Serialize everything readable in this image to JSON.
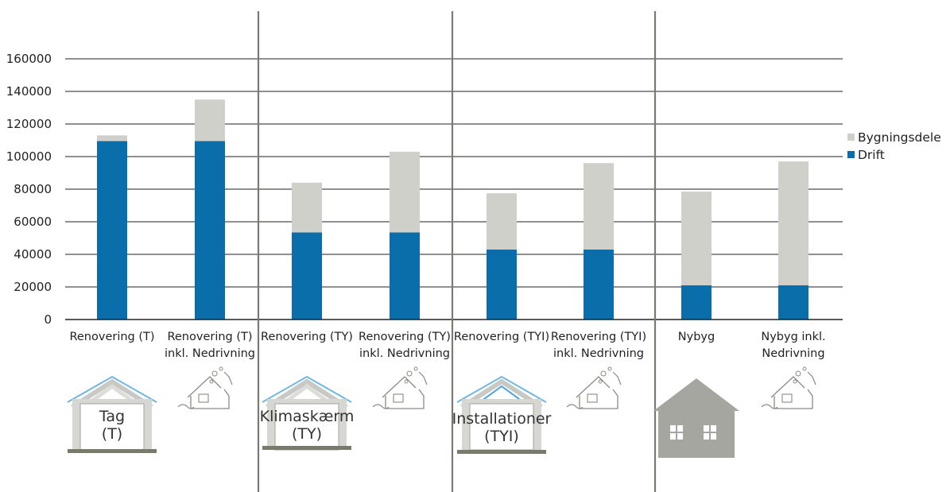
{
  "chart_data": {
    "type": "bar",
    "stacked": true,
    "categories": [
      [
        "Renovering (T)"
      ],
      [
        "Renovering (T)",
        "inkl. Nedrivning"
      ],
      [
        "Renovering (TY)"
      ],
      [
        "Renovering (TY)",
        "inkl. Nedrivning"
      ],
      [
        "Renovering (TYI)"
      ],
      [
        "Renovering (TYI)",
        "inkl. Nedrivning"
      ],
      [
        "Nybyg"
      ],
      [
        "Nybyg inkl.",
        "Nedrivning"
      ]
    ],
    "series": [
      {
        "name": "Drift",
        "color": "#0a6eab",
        "values": [
          109500,
          109500,
          53500,
          53500,
          43000,
          43000,
          21000,
          21000
        ]
      },
      {
        "name": "Bygningsdele",
        "color": "#d0d0cb",
        "values": [
          3500,
          25500,
          30500,
          49500,
          34500,
          53000,
          57500,
          76000
        ]
      }
    ],
    "yticks": [
      "0",
      "20000",
      "40000",
      "60000",
      "80000",
      "100000",
      "120000",
      "140000",
      "160000"
    ],
    "ylim": [
      0,
      160000
    ],
    "legend_order": [
      "Bygningsdele",
      "Drift"
    ],
    "legend_position": "right",
    "gridlines": true,
    "group_separators": true
  },
  "icons": [
    {
      "name": "tag-house-icon",
      "lines": [
        "Tag",
        "(T)"
      ]
    },
    {
      "name": "demolition-house-icon",
      "lines": []
    },
    {
      "name": "klimaskaerm-house-icon",
      "lines": [
        "Klimaskærm",
        "(TY)"
      ]
    },
    {
      "name": "demolition-house-icon",
      "lines": []
    },
    {
      "name": "installationer-house-icon",
      "lines": [
        "Installationer",
        "(TYI)"
      ]
    },
    {
      "name": "demolition-house-icon",
      "lines": []
    },
    {
      "name": "new-house-icon",
      "lines": []
    },
    {
      "name": "demolition-house-icon",
      "lines": []
    }
  ]
}
